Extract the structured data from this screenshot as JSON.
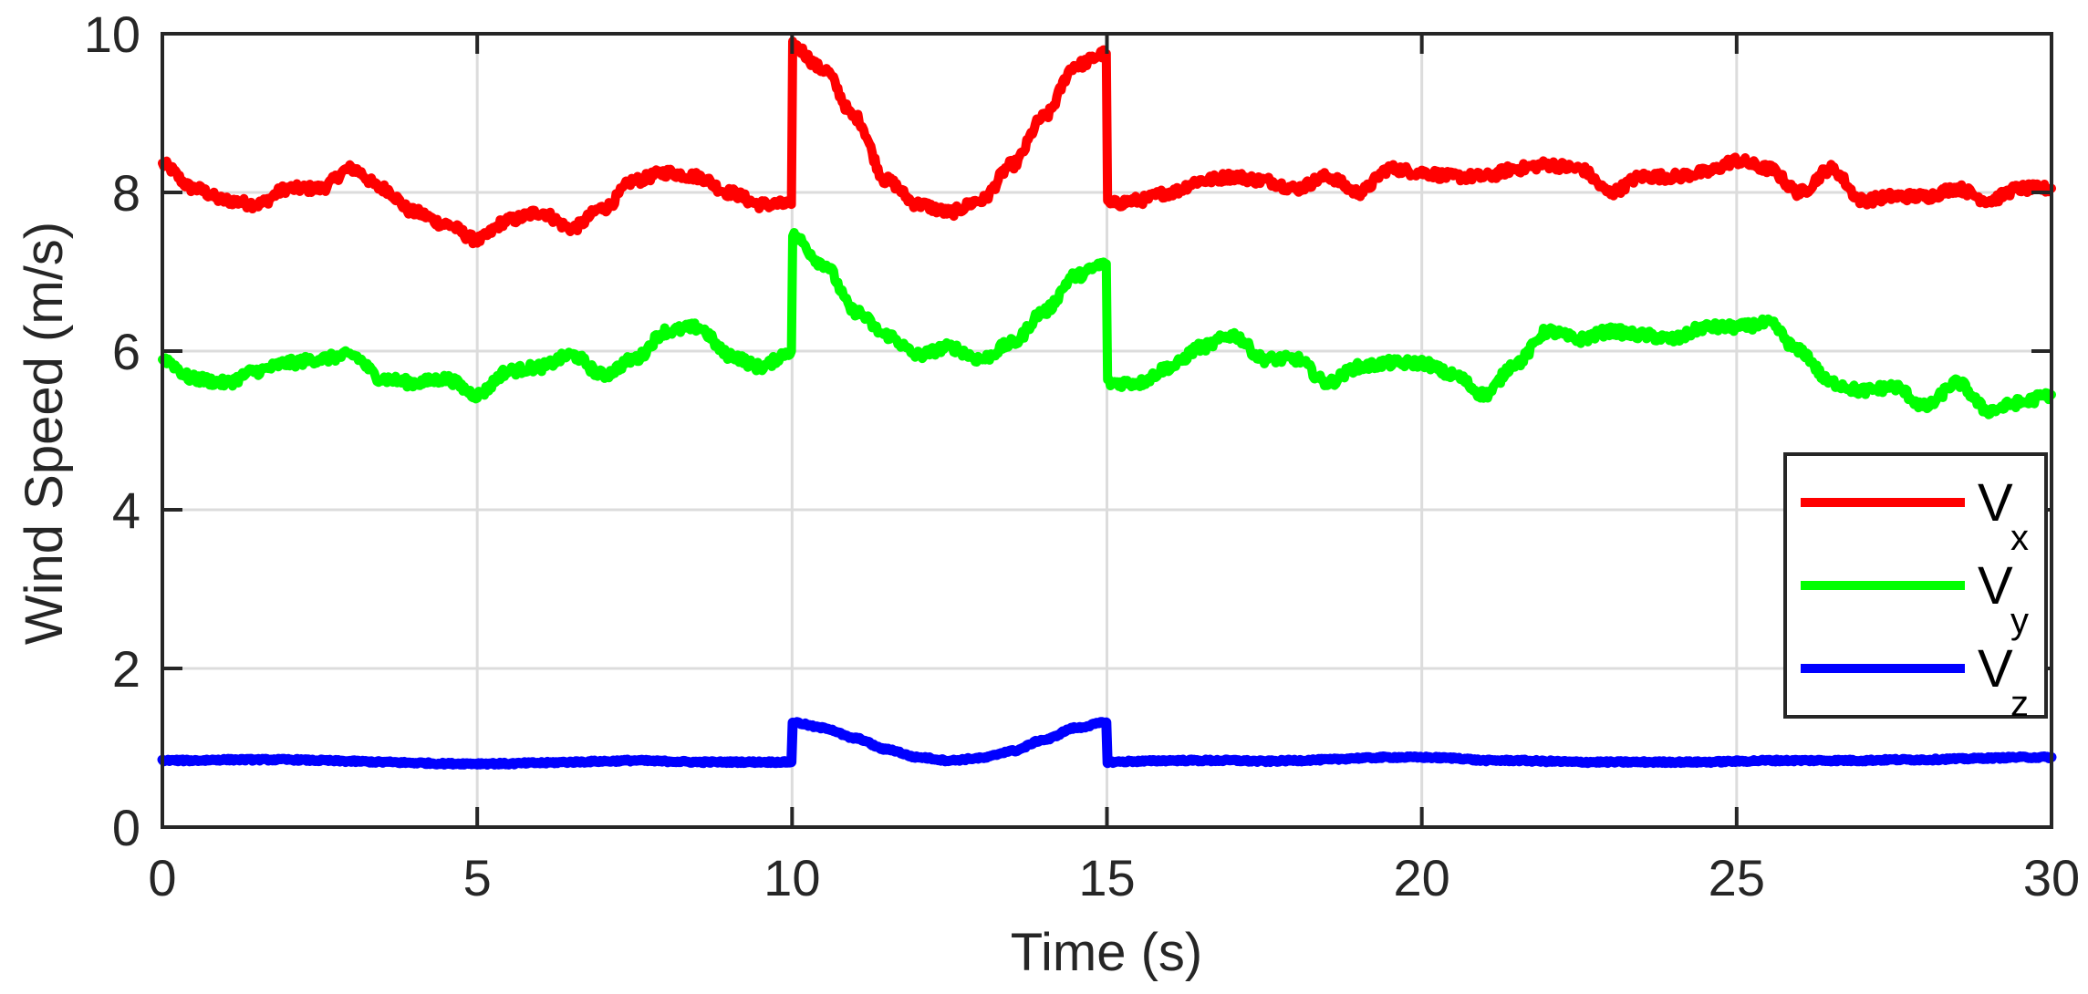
{
  "chart_data": {
    "type": "line",
    "title": "",
    "xlabel": "Time (s)",
    "ylabel": "Wind Speed (m/s)",
    "xlim": [
      0,
      30
    ],
    "ylim": [
      0,
      10
    ],
    "xticks": [
      0,
      5,
      10,
      15,
      20,
      25,
      30
    ],
    "yticks": [
      0,
      2,
      4,
      6,
      8,
      10
    ],
    "xtick_labels": [
      "0",
      "5",
      "10",
      "15",
      "20",
      "25",
      "30"
    ],
    "ytick_labels": [
      "0",
      "2",
      "4",
      "6",
      "8",
      "10"
    ],
    "grid": true,
    "legend_position": "right, lower-middle",
    "x": [
      0,
      0.5,
      1,
      1.5,
      2,
      2.5,
      3,
      3.5,
      4,
      4.5,
      5,
      5.5,
      6,
      6.5,
      7,
      7.5,
      8,
      8.5,
      9,
      9.5,
      9.99,
      10.01,
      10.5,
      11,
      11.5,
      12,
      12.5,
      13,
      13.5,
      14,
      14.5,
      14.99,
      15.01,
      15.5,
      16,
      16.5,
      17,
      17.5,
      18,
      18.5,
      19,
      19.5,
      20,
      20.5,
      21,
      21.5,
      22,
      22.5,
      23,
      23.5,
      24,
      24.5,
      25,
      25.5,
      26,
      26.5,
      27,
      27.5,
      28,
      28.5,
      29,
      29.5,
      30
    ],
    "series": [
      {
        "name": "V_x",
        "label_main": "V",
        "label_sub": "x",
        "color": "#ff0000",
        "values": [
          8.35,
          8.05,
          7.9,
          7.85,
          8.05,
          8.05,
          8.3,
          8.05,
          7.75,
          7.6,
          7.4,
          7.65,
          7.75,
          7.55,
          7.8,
          8.15,
          8.25,
          8.2,
          8.0,
          7.85,
          7.85,
          9.85,
          9.55,
          8.95,
          8.15,
          7.85,
          7.75,
          7.9,
          8.35,
          8.95,
          9.6,
          9.75,
          7.85,
          7.9,
          8.0,
          8.15,
          8.2,
          8.15,
          8.05,
          8.2,
          8.0,
          8.3,
          8.25,
          8.2,
          8.2,
          8.3,
          8.35,
          8.3,
          8.0,
          8.2,
          8.2,
          8.25,
          8.4,
          8.3,
          8.0,
          8.3,
          7.9,
          7.95,
          7.95,
          8.05,
          7.9,
          8.05,
          8.05
        ]
      },
      {
        "name": "V_y",
        "label_main": "V",
        "label_sub": "y",
        "color": "#00ff00",
        "values": [
          5.9,
          5.65,
          5.6,
          5.75,
          5.85,
          5.9,
          5.95,
          5.65,
          5.6,
          5.65,
          5.45,
          5.75,
          5.8,
          5.95,
          5.7,
          5.9,
          6.25,
          6.3,
          5.95,
          5.8,
          6.0,
          7.45,
          7.1,
          6.5,
          6.2,
          5.95,
          6.05,
          5.9,
          6.1,
          6.5,
          6.95,
          7.1,
          5.6,
          5.6,
          5.8,
          6.05,
          6.2,
          5.9,
          5.9,
          5.6,
          5.8,
          5.85,
          5.85,
          5.7,
          5.45,
          5.85,
          6.25,
          6.15,
          6.25,
          6.2,
          6.15,
          6.3,
          6.3,
          6.35,
          6.0,
          5.6,
          5.5,
          5.55,
          5.3,
          5.6,
          5.25,
          5.35,
          5.45
        ]
      },
      {
        "name": "V_z",
        "label_main": "V",
        "label_sub": "z",
        "color": "#0000ff",
        "values": [
          0.84,
          0.84,
          0.85,
          0.85,
          0.85,
          0.84,
          0.83,
          0.82,
          0.81,
          0.8,
          0.8,
          0.8,
          0.81,
          0.82,
          0.83,
          0.84,
          0.83,
          0.82,
          0.82,
          0.82,
          0.82,
          1.32,
          1.25,
          1.12,
          0.98,
          0.88,
          0.84,
          0.87,
          0.96,
          1.1,
          1.25,
          1.32,
          0.82,
          0.83,
          0.84,
          0.84,
          0.84,
          0.83,
          0.84,
          0.85,
          0.87,
          0.88,
          0.88,
          0.87,
          0.84,
          0.84,
          0.83,
          0.82,
          0.82,
          0.82,
          0.82,
          0.82,
          0.83,
          0.84,
          0.84,
          0.84,
          0.84,
          0.85,
          0.85,
          0.86,
          0.87,
          0.88,
          0.88
        ]
      }
    ]
  },
  "axes": {
    "xlabel": "Time (s)",
    "ylabel": "Wind Speed (m/s)",
    "grid_color": "#dcdcdc",
    "axis_color": "#262626"
  },
  "legend": {
    "items": [
      {
        "main": "V",
        "sub": "x",
        "color": "#ff0000"
      },
      {
        "main": "V",
        "sub": "y",
        "color": "#00ff00"
      },
      {
        "main": "V",
        "sub": "z",
        "color": "#0000ff"
      }
    ]
  }
}
